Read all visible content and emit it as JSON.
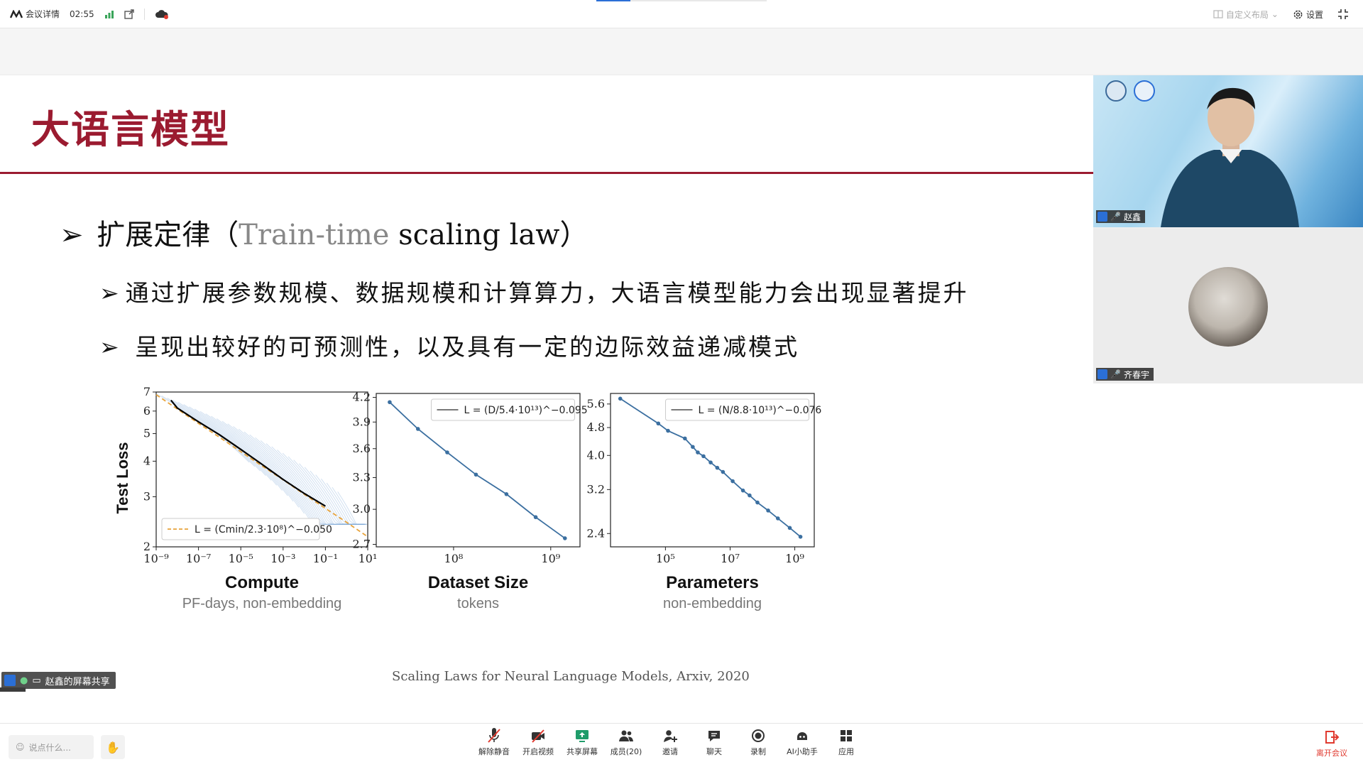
{
  "topbar": {
    "meeting_details": "会议详情",
    "timer": "02:55",
    "layout": "自定义布局",
    "settings": "设置"
  },
  "slide": {
    "title": "大语言模型",
    "bullet1_prefix": "扩展定律（",
    "bullet1_gray": "Train-time",
    "bullet1_suffix": " scaling law）",
    "sub1": "通过扩展参数规模、数据规模和计算算力，大语言模型能力会出现显著提升",
    "sub2": "呈现出较好的可预测性，以及具有一定的边际效益递减模式",
    "citation": "Scaling Laws for Neural Language Models, Arxiv, 2020"
  },
  "chart_data": [
    {
      "type": "line",
      "xlabel": "Compute",
      "xlabel_sub": "PF-days, non-embedding",
      "ylabel": "Test Loss",
      "x_scale": "log",
      "y_scale": "log",
      "x_ticks": [
        "10⁻⁹",
        "10⁻⁷",
        "10⁻⁵",
        "10⁻³",
        "10⁻¹",
        "10¹"
      ],
      "y_ticks": [
        "2",
        "3",
        "4",
        "5",
        "6",
        "7"
      ],
      "xlim": [
        1e-09,
        10
      ],
      "ylim": [
        2,
        7
      ],
      "legend": "L = (Cmin/2.3·10⁸)^−0.050",
      "series": [
        {
          "name": "L = (Cmin/2.3·10⁸)^−0.050",
          "style": "dashed",
          "color": "#e8a33a",
          "x": [
            1e-09,
            1e-08,
            1e-07,
            1e-06,
            1e-05,
            0.0001,
            0.001,
            0.01,
            0.1,
            1,
            10
          ],
          "y": [
            6.85,
            6.1,
            5.43,
            4.85,
            4.32,
            3.85,
            3.44,
            3.06,
            2.73,
            2.44,
            2.17
          ]
        },
        {
          "name": "",
          "style": "solid",
          "color": "#000000",
          "x": [
            5e-09,
            1e-08,
            1e-07,
            1e-06,
            1e-05,
            0.0001,
            0.001,
            0.01,
            0.1
          ],
          "y": [
            6.55,
            6.15,
            5.5,
            4.95,
            4.4,
            3.9,
            3.45,
            3.08,
            2.78
          ]
        }
      ]
    },
    {
      "type": "line",
      "xlabel": "Dataset Size",
      "xlabel_sub": "tokens",
      "x_scale": "log",
      "y_scale": "log",
      "x_ticks": [
        "10⁸",
        "10⁹"
      ],
      "y_ticks": [
        "2.7",
        "3.0",
        "3.3",
        "3.6",
        "3.9",
        "4.2"
      ],
      "legend": "L = (D/5.4·10¹³)^−0.095",
      "series": [
        {
          "name": "L = (D/5.4·10¹³)^−0.095",
          "style": "line",
          "color": "#3b6fa0",
          "x": [
            22000000.0,
            43000000.0,
            86000000.0,
            170000000.0,
            350000000.0,
            700000000.0,
            1400000000.0
          ],
          "y": [
            4.14,
            3.82,
            3.56,
            3.33,
            3.14,
            2.93,
            2.75
          ]
        }
      ]
    },
    {
      "type": "line",
      "xlabel": "Parameters",
      "xlabel_sub": "non-embedding",
      "x_scale": "log",
      "y_scale": "log",
      "x_ticks": [
        "10⁵",
        "10⁷",
        "10⁹"
      ],
      "y_ticks": [
        "2.4",
        "3.2",
        "4.0",
        "4.8",
        "5.6"
      ],
      "legend": "L = (N/8.8·10¹³)^−0.076",
      "series": [
        {
          "name": "L = (N/8.8·10¹³)^−0.076",
          "style": "line",
          "color": "#3b6fa0",
          "x": [
            4000.0,
            60000.0,
            120000.0,
            400000.0,
            700000.0,
            1000000.0,
            1500000.0,
            2500000.0,
            4000000.0,
            6000000.0,
            12000000.0,
            25000000.0,
            40000000.0,
            70000000.0,
            150000000.0,
            300000000.0,
            700000000.0,
            1500000000.0
          ],
          "y": [
            5.8,
            4.93,
            4.7,
            4.47,
            4.23,
            4.08,
            3.98,
            3.82,
            3.69,
            3.59,
            3.38,
            3.18,
            3.08,
            2.94,
            2.79,
            2.65,
            2.49,
            2.35
          ]
        }
      ]
    }
  ],
  "share_label": "赵鑫的屏幕共享",
  "participants": [
    {
      "name": "赵鑫"
    },
    {
      "name": "齐春宇"
    }
  ],
  "chat_placeholder": "说点什么...",
  "toolbar": [
    {
      "label": "解除静音",
      "icon": "mic-muted-icon"
    },
    {
      "label": "开启视频",
      "icon": "camera-off-icon"
    },
    {
      "label": "共享屏幕",
      "icon": "share-screen-icon"
    },
    {
      "label": "成员(20)",
      "icon": "members-icon"
    },
    {
      "label": "邀请",
      "icon": "invite-icon"
    },
    {
      "label": "聊天",
      "icon": "chat-icon"
    },
    {
      "label": "录制",
      "icon": "record-icon"
    },
    {
      "label": "AI小助手",
      "icon": "ai-assistant-icon"
    },
    {
      "label": "应用",
      "icon": "apps-icon"
    }
  ],
  "leave_label": "离开会议",
  "colors": {
    "accent": "#9b1b30",
    "brand": "#2b6fd6",
    "leave": "#e03a2f"
  }
}
